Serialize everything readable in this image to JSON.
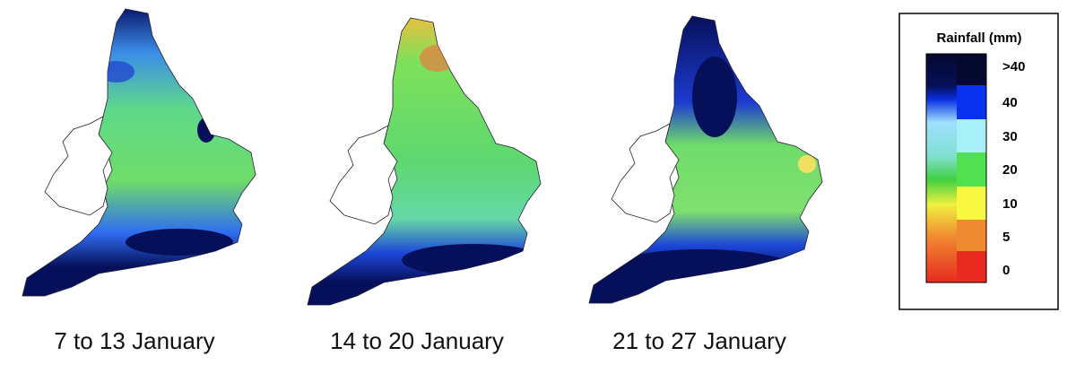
{
  "panels": [
    {
      "caption": "7 to 13 January"
    },
    {
      "caption": "14 to 20 January"
    },
    {
      "caption": "21 to 27 January"
    }
  ],
  "legend": {
    "title": "Rainfall (mm)",
    "labels": [
      ">40",
      "40",
      "30",
      "20",
      "10",
      "5",
      "0"
    ]
  }
}
